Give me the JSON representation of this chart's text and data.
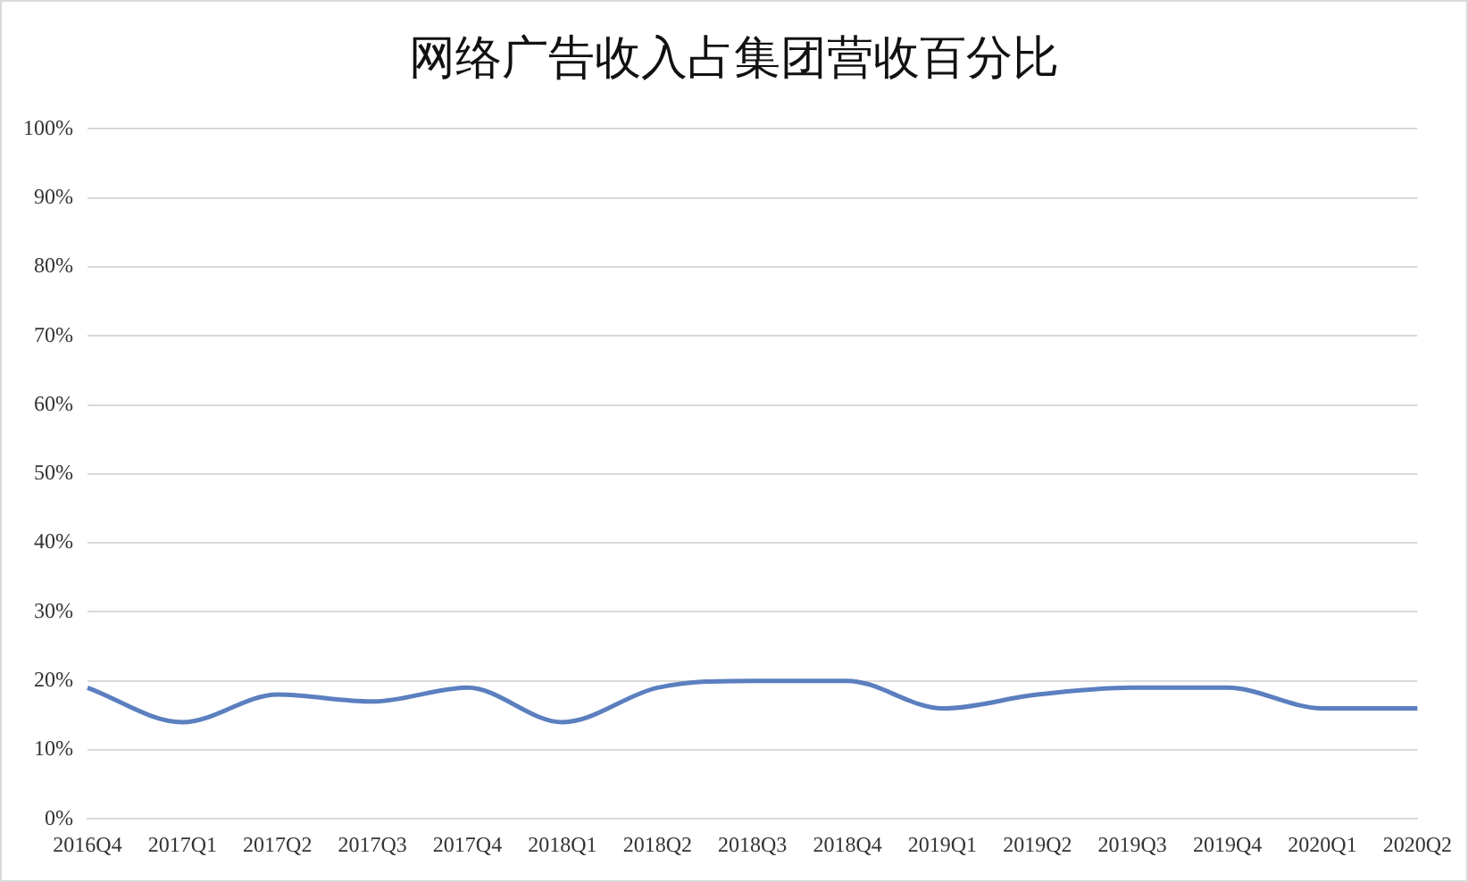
{
  "chart_data": {
    "type": "line",
    "title": "网络广告收入占集团营收百分比",
    "categories": [
      "2016Q4",
      "2017Q1",
      "2017Q2",
      "2017Q3",
      "2017Q4",
      "2018Q1",
      "2018Q2",
      "2018Q3",
      "2018Q4",
      "2019Q1",
      "2019Q2",
      "2019Q3",
      "2019Q4",
      "2020Q1",
      "2020Q2"
    ],
    "series": [
      {
        "color": "#5b7fbf",
        "values": [
          19,
          14,
          18,
          17,
          19,
          14,
          19,
          20,
          20,
          16,
          18,
          19,
          19,
          16,
          16
        ]
      }
    ],
    "ylim": [
      0,
      100
    ],
    "yticks": [
      {
        "value": 0,
        "label": "0%"
      },
      {
        "value": 10,
        "label": "10%"
      },
      {
        "value": 20,
        "label": "20%"
      },
      {
        "value": 30,
        "label": "30%"
      },
      {
        "value": 40,
        "label": "40%"
      },
      {
        "value": 50,
        "label": "50%"
      },
      {
        "value": 60,
        "label": "60%"
      },
      {
        "value": 70,
        "label": "70%"
      },
      {
        "value": 80,
        "label": "80%"
      },
      {
        "value": 90,
        "label": "90%"
      },
      {
        "value": 100,
        "label": "100%"
      }
    ],
    "grid": "y",
    "legend": false,
    "marker": "none",
    "line_style": "solid"
  }
}
